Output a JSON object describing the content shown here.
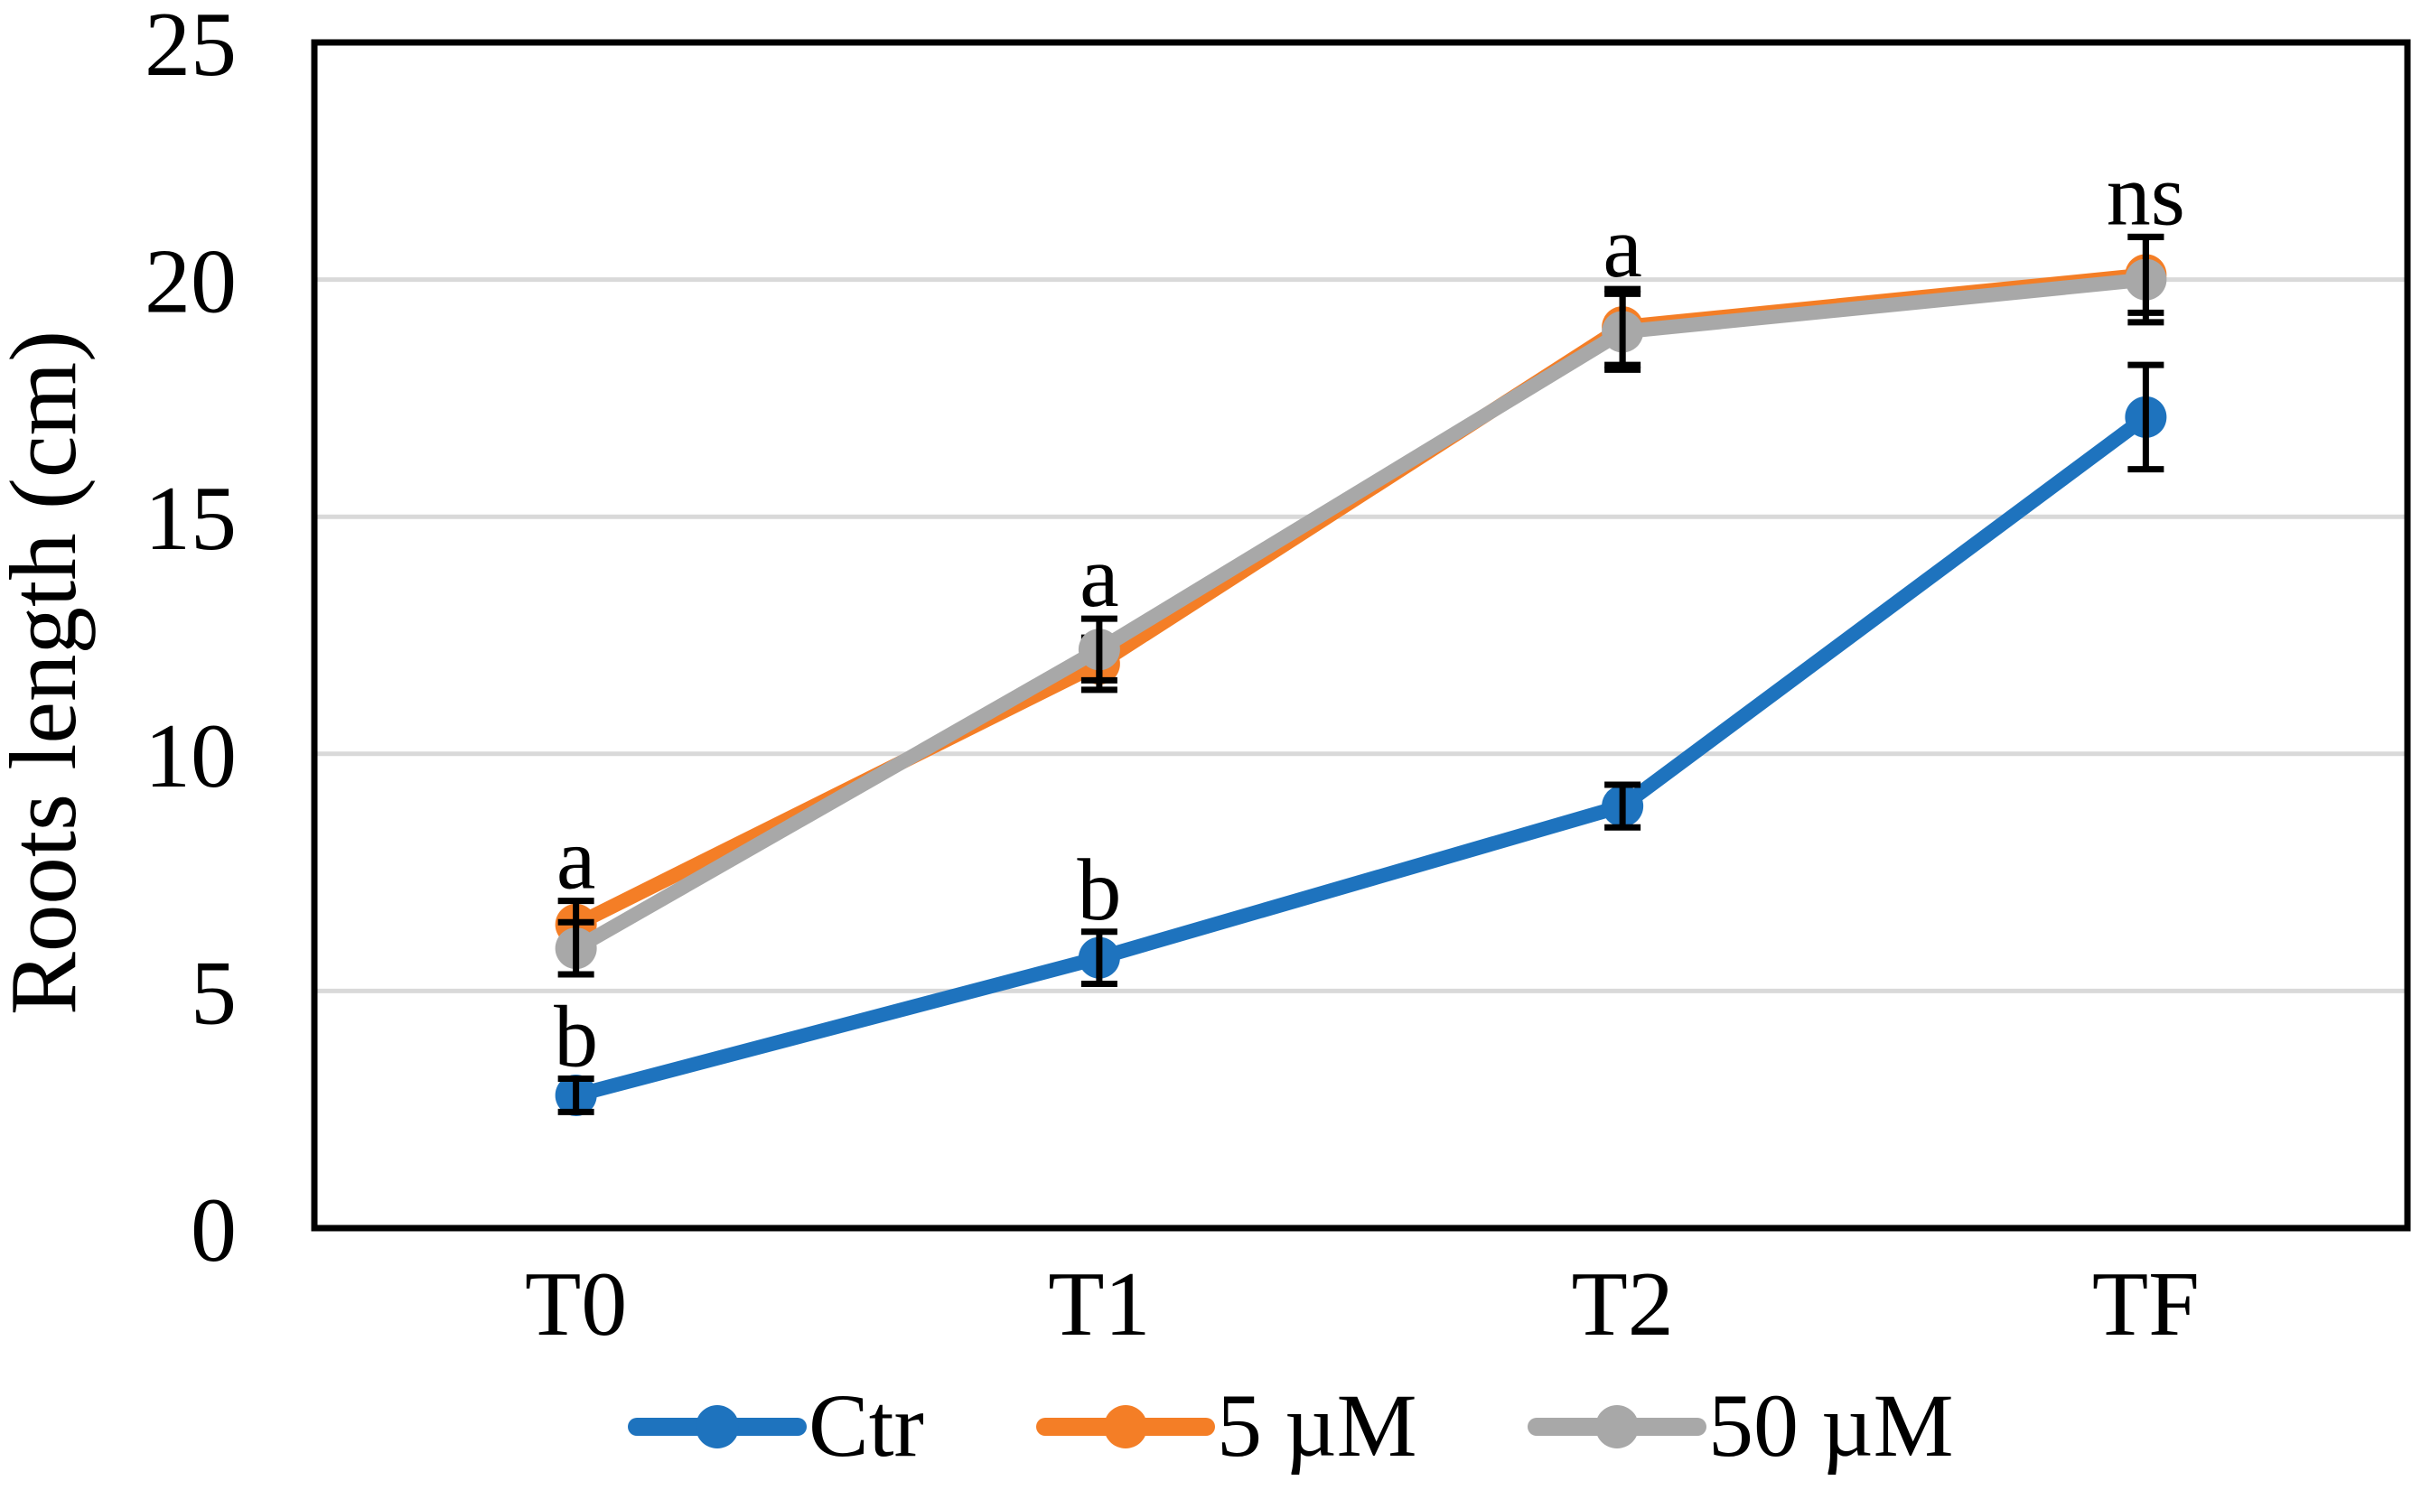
{
  "figure": {
    "background_color": "#ffffff",
    "border_color": "#000000",
    "gridline_color": "#d9d9d9"
  },
  "chart_data": {
    "type": "line",
    "title": "",
    "xlabel": "",
    "ylabel": "Roots length (cm)",
    "categories": [
      "T0",
      "T1",
      "T2",
      "TF"
    ],
    "ylim": [
      0,
      25
    ],
    "y_ticks": [
      0,
      5,
      10,
      15,
      20,
      25
    ],
    "grid": "horizontal",
    "legend_position": "bottom",
    "marker": "circle",
    "series": [
      {
        "name": "Ctr",
        "color": "#1e73be",
        "values": [
          2.8,
          5.7,
          8.9,
          17.1
        ],
        "errors": [
          0.35,
          0.55,
          0.45,
          1.1
        ]
      },
      {
        "name": "5 µM",
        "color": "#f47e26",
        "values": [
          6.4,
          11.9,
          19.0,
          20.1
        ],
        "errors": [
          0.5,
          0.55,
          0.8,
          0.8
        ]
      },
      {
        "name": "50 µM",
        "color": "#a8a8a8",
        "values": [
          5.9,
          12.2,
          18.9,
          20.0
        ],
        "errors": [
          0.55,
          0.65,
          0.8,
          0.9
        ]
      }
    ],
    "annotations": [
      {
        "category": "T0",
        "text": "a",
        "at_value": 6.9
      },
      {
        "category": "T0",
        "text": "b",
        "at_value": 3.15
      },
      {
        "category": "T1",
        "text": "a",
        "at_value": 12.85
      },
      {
        "category": "T1",
        "text": "b",
        "at_value": 6.25
      },
      {
        "category": "T2",
        "text": "a",
        "at_value": 19.8
      },
      {
        "category": "TF",
        "text": "ns",
        "at_value": 20.9
      }
    ]
  }
}
